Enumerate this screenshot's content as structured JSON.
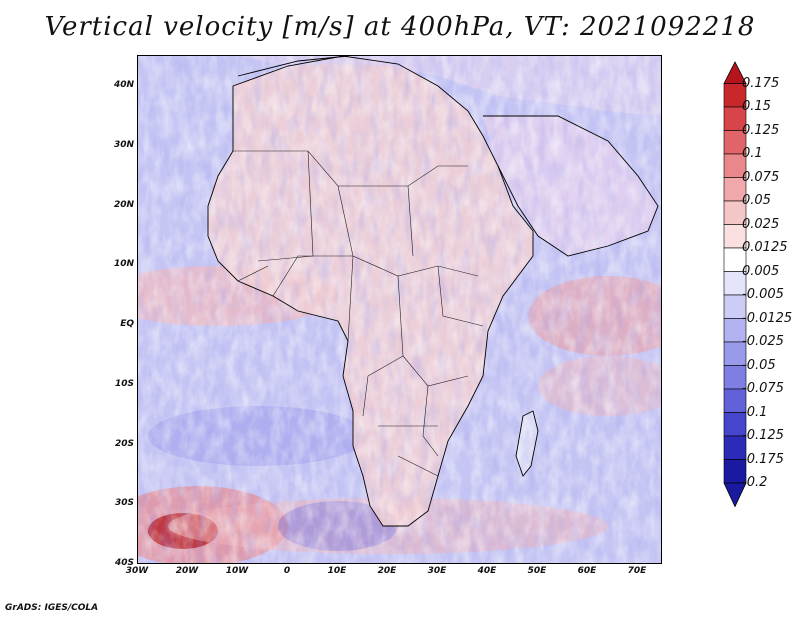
{
  "title": "Vertical velocity [m/s] at 400hPa, VT: 2021092218",
  "footer": "GrADS: IGES/COLA",
  "map": {
    "lat_ticks": [
      "40N",
      "30N",
      "20N",
      "10N",
      "EQ",
      "10S",
      "20S",
      "30S",
      "40S"
    ],
    "lon_ticks": [
      "30W",
      "20W",
      "10W",
      "0",
      "10E",
      "20E",
      "30E",
      "40E",
      "50E",
      "60E",
      "70E"
    ],
    "extent": {
      "lon_min": -30,
      "lon_max": 75,
      "lat_min": -40,
      "lat_max": 45
    },
    "colors": {
      "ocean_base": "#c9c9f5",
      "land_base": "#f3d2d2",
      "coast": "#000000"
    }
  },
  "colorbar": {
    "labels": [
      "0.175",
      "0.15",
      "0.125",
      "0.1",
      "0.075",
      "0.05",
      "0.025",
      "0.0125",
      "0.005",
      "-0.005",
      "-0.0125",
      "-0.025",
      "-0.05",
      "-0.075",
      "-0.1",
      "-0.125",
      "-0.175",
      "-0.2"
    ],
    "colors": [
      "#b4141c",
      "#c8282a",
      "#d7444a",
      "#e16468",
      "#e9888b",
      "#f0a8aa",
      "#f5c6c7",
      "#fae0e0",
      "#ffffff",
      "#e4e4fa",
      "#ccccf6",
      "#b2b2f1",
      "#9a9aeb",
      "#7f7fe3",
      "#6161da",
      "#4646cc",
      "#2b2bb8",
      "#1a1aa0"
    ]
  }
}
